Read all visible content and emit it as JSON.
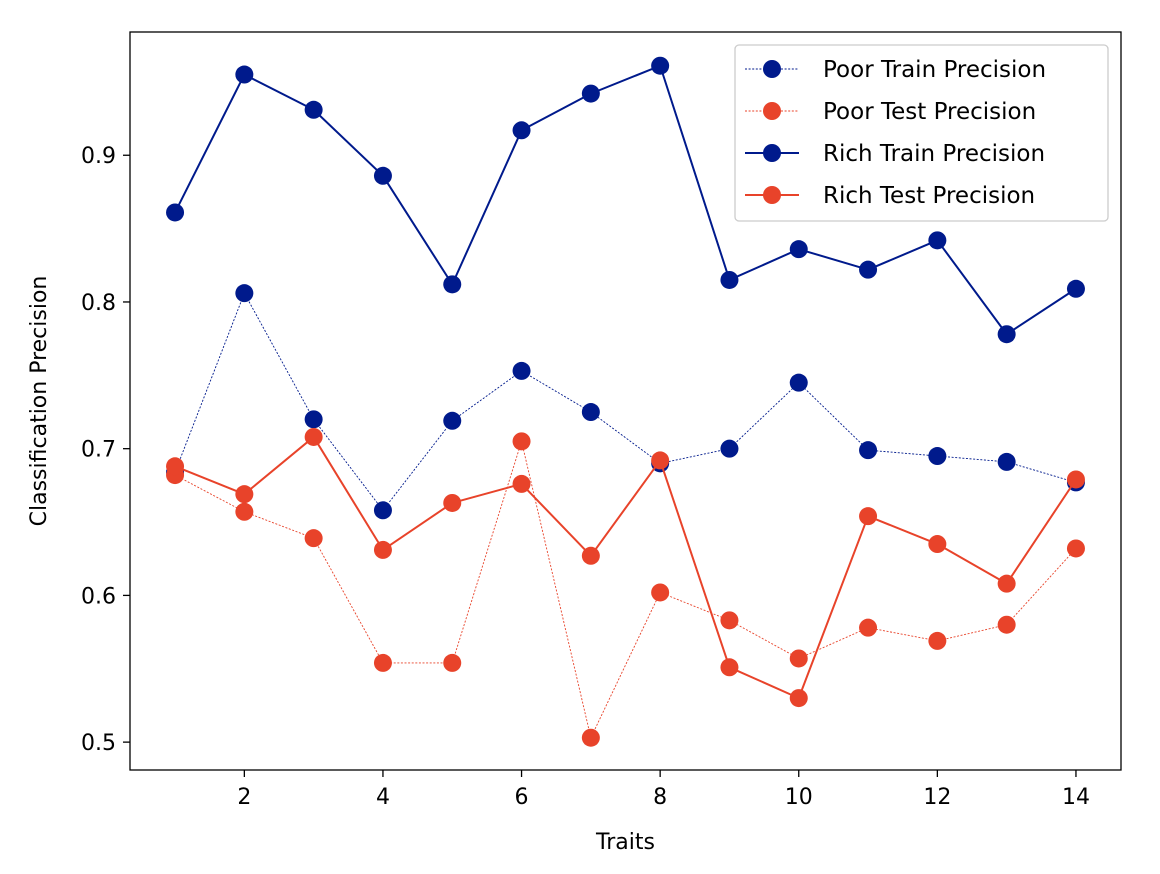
{
  "chart_data": {
    "type": "line",
    "title": "",
    "xlabel": "Traits",
    "ylabel": "Classification Precision",
    "xlim": [
      0.35,
      14.65
    ],
    "ylim": [
      0.481,
      0.984
    ],
    "xticks": [
      2,
      4,
      6,
      8,
      10,
      12,
      14
    ],
    "yticks": [
      0.5,
      0.6,
      0.7,
      0.8,
      0.9
    ],
    "grid": false,
    "legend_position": "top-right",
    "x": [
      1,
      2,
      3,
      4,
      5,
      6,
      7,
      8,
      9,
      10,
      11,
      12,
      13,
      14
    ],
    "series": [
      {
        "name": "Poor Train Precision",
        "color": "#001a8c",
        "line_style": "dotted",
        "values": [
          0.684,
          0.806,
          0.72,
          0.658,
          0.719,
          0.753,
          0.725,
          0.69,
          0.7,
          0.745,
          0.699,
          0.695,
          0.691,
          0.677
        ]
      },
      {
        "name": "Poor Test Precision",
        "color": "#e8432a",
        "line_style": "dotted",
        "values": [
          0.682,
          0.657,
          0.639,
          0.554,
          0.554,
          0.705,
          0.503,
          0.602,
          0.583,
          0.557,
          0.578,
          0.569,
          0.58,
          0.632
        ]
      },
      {
        "name": "Rich Train Precision",
        "color": "#001a8c",
        "line_style": "solid",
        "values": [
          0.861,
          0.955,
          0.931,
          0.886,
          0.812,
          0.917,
          0.942,
          0.961,
          0.815,
          0.836,
          0.822,
          0.842,
          0.778,
          0.809
        ]
      },
      {
        "name": "Rich Test Precision",
        "color": "#e8432a",
        "line_style": "solid",
        "values": [
          0.688,
          0.669,
          0.708,
          0.631,
          0.663,
          0.676,
          0.627,
          0.692,
          0.551,
          0.53,
          0.654,
          0.635,
          0.608,
          0.679
        ]
      }
    ]
  }
}
